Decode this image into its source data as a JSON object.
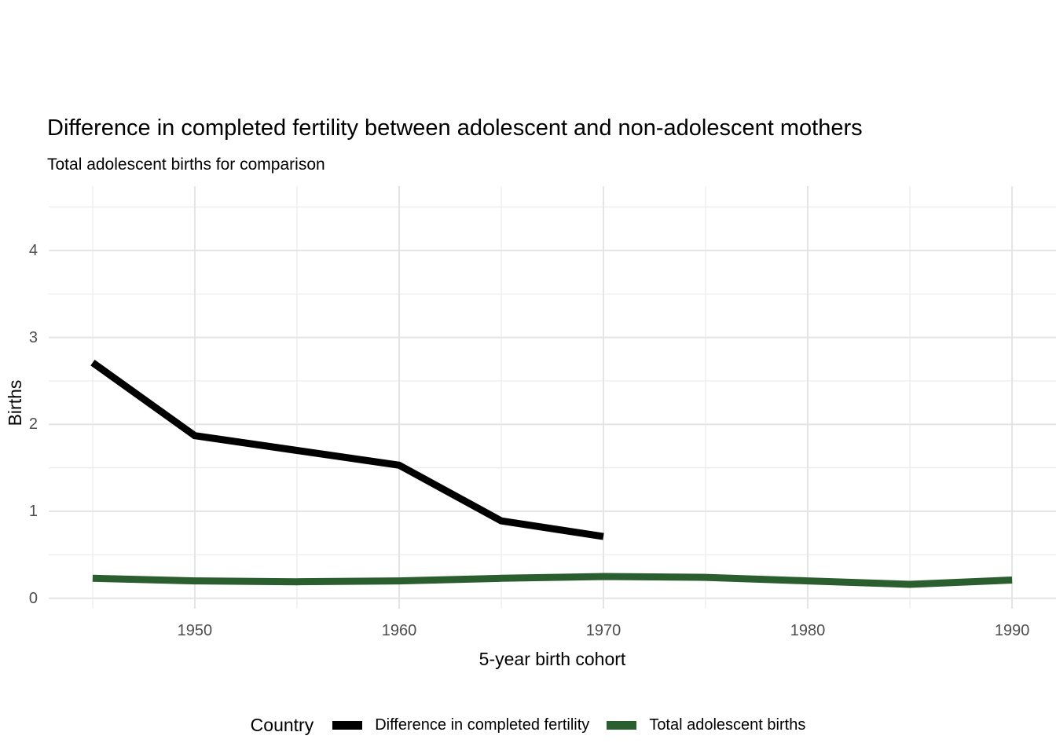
{
  "title": "Difference in completed fertility between adolescent and non-adolescent mothers",
  "subtitle": "Total adolescent births for comparison",
  "axes": {
    "x_label": "5-year birth cohort",
    "y_label": "Births",
    "x_tick_labels": [
      "1950",
      "1960",
      "1970",
      "1980",
      "1990"
    ],
    "y_tick_labels": [
      "0",
      "1",
      "2",
      "3",
      "4"
    ]
  },
  "legend": {
    "title": "Country"
  },
  "colors": {
    "difference_line": "#000000",
    "total_births_line": "#2b5e2f",
    "grid_major": "#e4e4e4",
    "grid_minor": "#ededed",
    "tick_text": "#4d4d4d",
    "background": "#ffffff"
  },
  "chart_data": {
    "type": "line",
    "title": "Difference in completed fertility between adolescent and non-adolescent mothers",
    "subtitle": "Total adolescent births for comparison",
    "xlabel": "5-year birth cohort",
    "ylabel": "Births",
    "xlim": [
      1942.85,
      1992.15
    ],
    "ylim": [
      -0.12,
      4.74
    ],
    "x_ticks": [
      1950,
      1960,
      1970,
      1980,
      1990
    ],
    "y_ticks": [
      0,
      1,
      2,
      3,
      4
    ],
    "x_grid_major": [
      1950,
      1960,
      1970,
      1980,
      1990
    ],
    "x_grid_minor": [
      1945,
      1955,
      1965,
      1975,
      1985
    ],
    "y_grid_major": [
      0,
      1,
      2,
      3,
      4
    ],
    "y_grid_minor": [
      0.5,
      1.5,
      2.5,
      3.5,
      4.5
    ],
    "grid": "on",
    "legend_position": "bottom",
    "legend_title": "Country",
    "series": [
      {
        "name": "Difference in completed fertility",
        "slug": "difference-in-completed-fertility",
        "color": "#000000",
        "stroke_width": 9,
        "x": [
          1945,
          1950,
          1955,
          1960,
          1965,
          1970
        ],
        "values": [
          2.71,
          1.87,
          1.7,
          1.53,
          0.89,
          0.71
        ]
      },
      {
        "name": "Total adolescent births",
        "slug": "total-adolescent-births",
        "color": "#2b5e2f",
        "stroke_width": 9,
        "x": [
          1945,
          1950,
          1955,
          1960,
          1965,
          1970,
          1975,
          1980,
          1985,
          1990
        ],
        "values": [
          0.23,
          0.2,
          0.19,
          0.2,
          0.23,
          0.25,
          0.24,
          0.2,
          0.16,
          0.21
        ]
      }
    ]
  }
}
